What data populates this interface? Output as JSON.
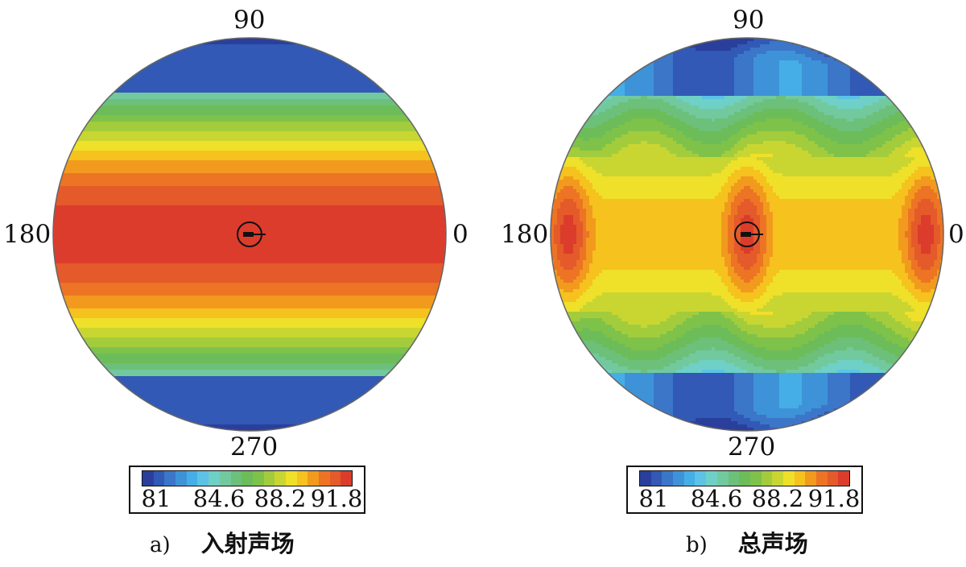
{
  "chart_data": [
    {
      "type": "heatmap",
      "id": "a",
      "projection": "polar",
      "caption_letter": "a)",
      "caption_title": "入射声场",
      "angle_labels": {
        "top": "90",
        "left": "180",
        "right": "0",
        "bottom": "270"
      },
      "colorbar": {
        "min": 81,
        "max": 93,
        "ticks": [
          "81",
          "84.6",
          "88.2",
          "91.8"
        ]
      },
      "field": "horizontal bands, maximum ~92 at 0°/180°, minimum ~81 at 90°/270°",
      "marker": "target at center"
    },
    {
      "type": "heatmap",
      "id": "b",
      "projection": "polar",
      "caption_letter": "b)",
      "caption_title": "总声场",
      "angle_labels": {
        "top": "90",
        "left": "180",
        "right": "0",
        "bottom": "270"
      },
      "colorbar": {
        "min": 81,
        "max": 93,
        "ticks": [
          "81",
          "84.6",
          "88.2",
          "91.8"
        ]
      },
      "field": "horizontal band with interference lobes, peaks ~92 along horizontal axis, minima ~81 near 90°/270°",
      "marker": "target at center"
    }
  ],
  "palette": [
    "#2a3f9c",
    "#3159b5",
    "#3b76c8",
    "#3e93d8",
    "#45aee6",
    "#5cc3e6",
    "#6ed0c6",
    "#72c99e",
    "#6cc07a",
    "#6cbc5a",
    "#7ec24a",
    "#a3cc3c",
    "#c9d632",
    "#efe02a",
    "#f6c21e",
    "#f29a1e",
    "#ec7424",
    "#e45a2a",
    "#dc3c2c"
  ]
}
